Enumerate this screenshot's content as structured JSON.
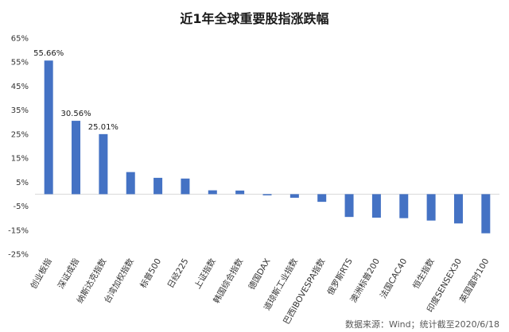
{
  "chart_data": {
    "type": "bar",
    "title": "近1年全球重要股指涨跌幅",
    "categories": [
      "创业板指",
      "深证成指",
      "纳斯达克指数",
      "台湾加权指数",
      "标普500",
      "日经225",
      "上证指数",
      "韩国综合指数",
      "德国DAX",
      "道琼斯工业指数",
      "巴西IBOVESPA指数",
      "俄罗斯RTS",
      "澳洲标普200",
      "法国CAC40",
      "恒生指数",
      "印度SENSEX30",
      "英国富时100"
    ],
    "series": [
      {
        "values": [
          55.66,
          30.56,
          25.01,
          9.2,
          6.8,
          6.5,
          1.6,
          1.5,
          -0.5,
          -1.5,
          -3.2,
          -9.5,
          -9.8,
          -10.0,
          -11.0,
          -12.2,
          -16.3
        ],
        "color": "#4472c4"
      }
    ],
    "data_labels": [
      {
        "index": 0,
        "text": "55.66%"
      },
      {
        "index": 1,
        "text": "30.56%"
      },
      {
        "index": 2,
        "text": "25.01%"
      }
    ],
    "yticks": [
      65,
      55,
      45,
      35,
      25,
      15,
      5,
      -5,
      -15,
      -25
    ],
    "ytick_labels": [
      "65%",
      "55%",
      "45%",
      "35%",
      "25%",
      "15%",
      "5%",
      "-5%",
      "-15%",
      "-25%"
    ],
    "ylim": [
      -25,
      65
    ],
    "xlabel": "",
    "ylabel": "",
    "grid": false,
    "legend": "none"
  },
  "source_note": "数据来源：Wind；统计截至2020/6/18"
}
